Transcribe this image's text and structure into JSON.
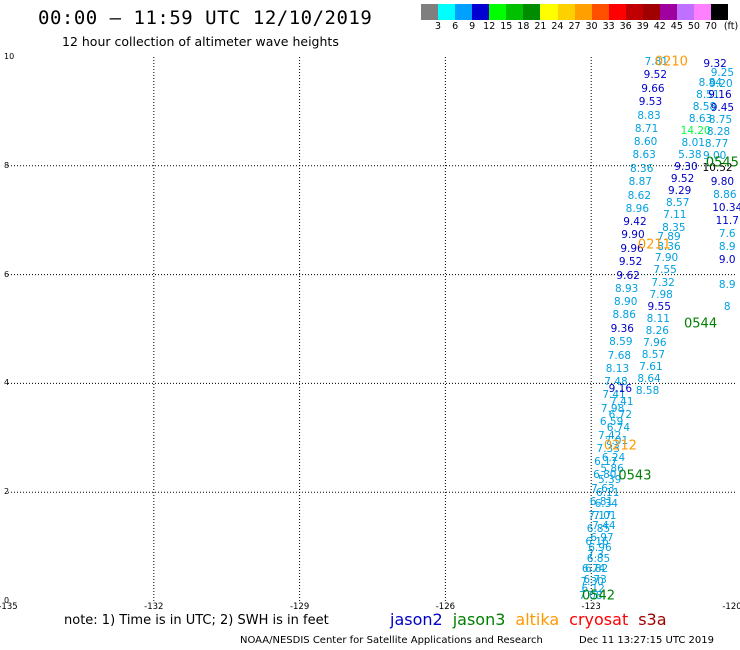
{
  "title": "00:00 – 11:59 UTC 12/10/2019",
  "subtitle": "12 hour collection of altimeter wave heights",
  "legend": {
    "unit": "(ft)",
    "bins": [
      {
        "label": "3",
        "color": "#7f7f7f"
      },
      {
        "label": "6",
        "color": "#00ffff"
      },
      {
        "label": "9",
        "color": "#00a0ff"
      },
      {
        "label": "12",
        "color": "#0000d0"
      },
      {
        "label": "15",
        "color": "#00ff00"
      },
      {
        "label": "18",
        "color": "#00c000"
      },
      {
        "label": "21",
        "color": "#008c00"
      },
      {
        "label": "24",
        "color": "#ffff00"
      },
      {
        "label": "27",
        "color": "#ffd000"
      },
      {
        "label": "30",
        "color": "#ffa000"
      },
      {
        "label": "33",
        "color": "#ff5000"
      },
      {
        "label": "36",
        "color": "#ff0000"
      },
      {
        "label": "39",
        "color": "#c00000"
      },
      {
        "label": "42",
        "color": "#a00000"
      },
      {
        "label": "45",
        "color": "#a000a0"
      },
      {
        "label": "50",
        "color": "#c070ff"
      },
      {
        "label": "70",
        "color": "#ff80ff"
      },
      {
        "label": "",
        "color": "#000000"
      }
    ]
  },
  "map": {
    "lat_ticks": [
      "10",
      "8",
      "6",
      "4",
      "2",
      "0"
    ],
    "lon_ticks": [
      "-135",
      "-132",
      "-129",
      "-126",
      "-123",
      "-120"
    ],
    "lat_range": [
      0,
      10
    ],
    "lon_range": [
      -135,
      -120
    ],
    "colors": {
      "jason2": "#0000c8",
      "cyan": "#00a0e0",
      "jason3": "#008000",
      "altika": "#ff9900",
      "cryosat": "#ff0000",
      "s3a": "#a00000",
      "green": "#00ff40",
      "black": "#000000"
    },
    "track_labels": [
      {
        "text": "0210",
        "lon": -121.35,
        "lat": 9.9,
        "color": "altika"
      },
      {
        "text": "0211",
        "lon": -121.7,
        "lat": 6.55,
        "color": "altika"
      },
      {
        "text": "0212",
        "lon": -122.4,
        "lat": 2.85,
        "color": "altika"
      },
      {
        "text": "0542",
        "lon": -122.85,
        "lat": 0.1,
        "color": "jason3"
      },
      {
        "text": "0543",
        "lon": -122.1,
        "lat": 2.3,
        "color": "jason3"
      },
      {
        "text": "0544",
        "lon": -120.75,
        "lat": 5.1,
        "color": "jason3"
      },
      {
        "text": "0545",
        "lon": -120.3,
        "lat": 8.05,
        "color": "jason3"
      }
    ],
    "observations": [
      {
        "v": "7.81",
        "lon": -121.66,
        "lat": 9.9,
        "c": "cyan"
      },
      {
        "v": "9.52",
        "lon": -121.68,
        "lat": 9.66,
        "c": "jason2"
      },
      {
        "v": "9.66",
        "lon": -121.73,
        "lat": 9.41,
        "c": "jason2"
      },
      {
        "v": "9.53",
        "lon": -121.78,
        "lat": 9.17,
        "c": "jason2"
      },
      {
        "v": "8.83",
        "lon": -121.81,
        "lat": 8.92,
        "c": "cyan"
      },
      {
        "v": "8.71",
        "lon": -121.86,
        "lat": 8.68,
        "c": "cyan"
      },
      {
        "v": "8.60",
        "lon": -121.88,
        "lat": 8.43,
        "c": "cyan"
      },
      {
        "v": "8.63",
        "lon": -121.91,
        "lat": 8.19,
        "c": "cyan"
      },
      {
        "v": "8.36",
        "lon": -121.96,
        "lat": 7.94,
        "c": "cyan"
      },
      {
        "v": "8.87",
        "lon": -121.99,
        "lat": 7.7,
        "c": "cyan"
      },
      {
        "v": "8.62",
        "lon": -122.01,
        "lat": 7.45,
        "c": "cyan"
      },
      {
        "v": "8.96",
        "lon": -122.05,
        "lat": 7.21,
        "c": "cyan"
      },
      {
        "v": "9.42",
        "lon": -122.1,
        "lat": 6.96,
        "c": "jason2"
      },
      {
        "v": "9.90",
        "lon": -122.14,
        "lat": 6.72,
        "c": "jason2"
      },
      {
        "v": "9.96",
        "lon": -122.16,
        "lat": 6.47,
        "c": "jason2"
      },
      {
        "v": "9.52",
        "lon": -122.19,
        "lat": 6.23,
        "c": "jason2"
      },
      {
        "v": "9.62",
        "lon": -122.24,
        "lat": 5.98,
        "c": "jason2"
      },
      {
        "v": "8.93",
        "lon": -122.27,
        "lat": 5.74,
        "c": "cyan"
      },
      {
        "v": "8.90",
        "lon": -122.29,
        "lat": 5.49,
        "c": "cyan"
      },
      {
        "v": "8.86",
        "lon": -122.32,
        "lat": 5.25,
        "c": "cyan"
      },
      {
        "v": "9.36",
        "lon": -122.36,
        "lat": 5.0,
        "c": "jason2"
      },
      {
        "v": "8.59",
        "lon": -122.39,
        "lat": 4.76,
        "c": "cyan"
      },
      {
        "v": "7.68",
        "lon": -122.42,
        "lat": 4.51,
        "c": "cyan"
      },
      {
        "v": "8.13",
        "lon": -122.46,
        "lat": 4.27,
        "c": "cyan"
      },
      {
        "v": "7.48",
        "lon": -122.49,
        "lat": 4.02,
        "c": "cyan"
      },
      {
        "v": "7.41",
        "lon": -122.53,
        "lat": 3.78,
        "c": "cyan"
      },
      {
        "v": "7.98",
        "lon": -122.56,
        "lat": 3.53,
        "c": "cyan"
      },
      {
        "v": "6.59",
        "lon": -122.58,
        "lat": 3.29,
        "c": "cyan"
      },
      {
        "v": "7.42",
        "lon": -122.62,
        "lat": 3.04,
        "c": "cyan"
      },
      {
        "v": "7.33",
        "lon": -122.65,
        "lat": 2.8,
        "c": "cyan"
      },
      {
        "v": "6.17",
        "lon": -122.7,
        "lat": 2.55,
        "c": "cyan"
      },
      {
        "v": "6.80",
        "lon": -122.72,
        "lat": 2.31,
        "c": "cyan"
      },
      {
        "v": "7.63",
        "lon": -122.76,
        "lat": 2.06,
        "c": "cyan"
      },
      {
        "v": "6.81",
        "lon": -122.79,
        "lat": 1.82,
        "c": "cyan"
      },
      {
        "v": "7.17",
        "lon": -122.82,
        "lat": 1.57,
        "c": "cyan"
      },
      {
        "v": "6.85",
        "lon": -122.85,
        "lat": 1.33,
        "c": "cyan"
      },
      {
        "v": "6.16",
        "lon": -122.88,
        "lat": 1.08,
        "c": "cyan"
      },
      {
        "v": "7.3",
        "lon": -122.91,
        "lat": 0.84,
        "c": "cyan"
      },
      {
        "v": "6.74",
        "lon": -122.95,
        "lat": 0.59,
        "c": "cyan"
      },
      {
        "v": "7.30",
        "lon": -122.98,
        "lat": 0.35,
        "c": "cyan"
      },
      {
        "v": "7.08",
        "lon": -123.01,
        "lat": 0.1,
        "c": "cyan"
      },
      {
        "v": "9.16",
        "lon": -122.4,
        "lat": 3.9,
        "c": "jason2"
      },
      {
        "v": "7.41",
        "lon": -122.37,
        "lat": 3.66,
        "c": "cyan"
      },
      {
        "v": "6.72",
        "lon": -122.4,
        "lat": 3.42,
        "c": "cyan"
      },
      {
        "v": "6.74",
        "lon": -122.44,
        "lat": 3.18,
        "c": "cyan"
      },
      {
        "v": "7.01",
        "lon": -122.48,
        "lat": 2.95,
        "c": "cyan"
      },
      {
        "v": "6.24",
        "lon": -122.54,
        "lat": 2.62,
        "c": "cyan"
      },
      {
        "v": "5.86",
        "lon": -122.57,
        "lat": 2.42,
        "c": "cyan"
      },
      {
        "v": "5.39",
        "lon": -122.62,
        "lat": 2.22,
        "c": "cyan"
      },
      {
        "v": "6.11",
        "lon": -122.66,
        "lat": 1.98,
        "c": "cyan"
      },
      {
        "v": "6.34",
        "lon": -122.69,
        "lat": 1.78,
        "c": "cyan"
      },
      {
        "v": "7.01",
        "lon": -122.72,
        "lat": 1.57,
        "c": "cyan"
      },
      {
        "v": "7.44",
        "lon": -122.74,
        "lat": 1.38,
        "c": "cyan"
      },
      {
        "v": "6.97",
        "lon": -122.78,
        "lat": 1.15,
        "c": "cyan"
      },
      {
        "v": "6.96",
        "lon": -122.82,
        "lat": 0.98,
        "c": "cyan"
      },
      {
        "v": "6.85",
        "lon": -122.85,
        "lat": 0.78,
        "c": "cyan"
      },
      {
        "v": "6.82",
        "lon": -122.89,
        "lat": 0.58,
        "c": "cyan"
      },
      {
        "v": "6.73",
        "lon": -122.92,
        "lat": 0.38,
        "c": "cyan"
      },
      {
        "v": "6.12",
        "lon": -122.96,
        "lat": 0.22,
        "c": "cyan"
      },
      {
        "v": "8.36",
        "lon": -121.4,
        "lat": 6.5,
        "c": "cyan"
      },
      {
        "v": "7.89",
        "lon": -121.4,
        "lat": 6.7,
        "c": "cyan"
      },
      {
        "v": "7.90",
        "lon": -121.45,
        "lat": 6.3,
        "c": "cyan"
      },
      {
        "v": "7.55",
        "lon": -121.48,
        "lat": 6.08,
        "c": "cyan"
      },
      {
        "v": "7.32",
        "lon": -121.52,
        "lat": 5.84,
        "c": "cyan"
      },
      {
        "v": "7.98",
        "lon": -121.56,
        "lat": 5.62,
        "c": "cyan"
      },
      {
        "v": "9.55",
        "lon": -121.6,
        "lat": 5.4,
        "c": "jason2"
      },
      {
        "v": "8.11",
        "lon": -121.62,
        "lat": 5.18,
        "c": "cyan"
      },
      {
        "v": "8.26",
        "lon": -121.64,
        "lat": 4.97,
        "c": "cyan"
      },
      {
        "v": "7.96",
        "lon": -121.69,
        "lat": 4.74,
        "c": "cyan"
      },
      {
        "v": "8.57",
        "lon": -121.72,
        "lat": 4.52,
        "c": "cyan"
      },
      {
        "v": "7.61",
        "lon": -121.77,
        "lat": 4.3,
        "c": "cyan"
      },
      {
        "v": "8.64",
        "lon": -121.81,
        "lat": 4.08,
        "c": "cyan"
      },
      {
        "v": "8.58",
        "lon": -121.84,
        "lat": 3.86,
        "c": "cyan"
      },
      {
        "v": "7.11",
        "lon": -121.28,
        "lat": 7.09,
        "c": "cyan"
      },
      {
        "v": "8.35",
        "lon": -121.3,
        "lat": 6.86,
        "c": "cyan"
      },
      {
        "v": "8.57",
        "lon": -121.22,
        "lat": 7.31,
        "c": "cyan"
      },
      {
        "v": "9.29",
        "lon": -121.18,
        "lat": 7.53,
        "c": "jason2"
      },
      {
        "v": "9.52",
        "lon": -121.12,
        "lat": 7.75,
        "c": "jason2"
      },
      {
        "v": "9.30",
        "lon": -121.05,
        "lat": 7.97,
        "c": "jason2"
      },
      {
        "v": "5.38",
        "lon": -120.97,
        "lat": 8.2,
        "c": "cyan"
      },
      {
        "v": "8.01",
        "lon": -120.9,
        "lat": 8.42,
        "c": "cyan"
      },
      {
        "v": "14.20",
        "lon": -120.85,
        "lat": 8.64,
        "c": "green"
      },
      {
        "v": "8.63",
        "lon": -120.75,
        "lat": 8.86,
        "c": "cyan"
      },
      {
        "v": "8.58",
        "lon": -120.67,
        "lat": 9.08,
        "c": "cyan"
      },
      {
        "v": "8.51",
        "lon": -120.6,
        "lat": 9.3,
        "c": "cyan"
      },
      {
        "v": "8.84",
        "lon": -120.55,
        "lat": 9.52,
        "c": "cyan"
      },
      {
        "v": "9.32",
        "lon": -120.45,
        "lat": 9.88,
        "c": "jason2"
      },
      {
        "v": "9.25",
        "lon": -120.3,
        "lat": 9.7,
        "c": "cyan"
      },
      {
        "v": "9.20",
        "lon": -120.33,
        "lat": 9.5,
        "c": "cyan"
      },
      {
        "v": "9.16",
        "lon": -120.35,
        "lat": 9.3,
        "c": "jason2"
      },
      {
        "v": "9.45",
        "lon": -120.3,
        "lat": 9.06,
        "c": "jason2"
      },
      {
        "v": "8.75",
        "lon": -120.34,
        "lat": 8.84,
        "c": "cyan"
      },
      {
        "v": "8.28",
        "lon": -120.38,
        "lat": 8.62,
        "c": "cyan"
      },
      {
        "v": "8.77",
        "lon": -120.42,
        "lat": 8.4,
        "c": "cyan"
      },
      {
        "v": "9.00",
        "lon": -120.46,
        "lat": 8.18,
        "c": "cyan"
      },
      {
        "v": "10.52",
        "lon": -120.4,
        "lat": 7.96,
        "c": "black"
      },
      {
        "v": "9.80",
        "lon": -120.3,
        "lat": 7.7,
        "c": "jason2"
      },
      {
        "v": "8.86",
        "lon": -120.25,
        "lat": 7.46,
        "c": "cyan"
      },
      {
        "v": "10.34",
        "lon": -120.2,
        "lat": 7.22,
        "c": "jason2"
      },
      {
        "v": "11.7",
        "lon": -120.2,
        "lat": 6.98,
        "c": "jason2"
      },
      {
        "v": "7.6",
        "lon": -120.2,
        "lat": 6.74,
        "c": "cyan"
      },
      {
        "v": "8.9",
        "lon": -120.2,
        "lat": 6.5,
        "c": "cyan"
      },
      {
        "v": "9.0",
        "lon": -120.2,
        "lat": 6.26,
        "c": "jason2"
      },
      {
        "v": "8.9",
        "lon": -120.2,
        "lat": 5.8,
        "c": "cyan"
      },
      {
        "v": "8",
        "lon": -120.2,
        "lat": 5.4,
        "c": "cyan"
      }
    ]
  },
  "note": "note:  1) Time is in UTC;  2) SWH is in feet",
  "satellites": [
    {
      "name": "jason2",
      "color": "#0000c8"
    },
    {
      "name": "jason3",
      "color": "#008000"
    },
    {
      "name": "altika",
      "color": "#ff9900"
    },
    {
      "name": "cryosat",
      "color": "#ff0000"
    },
    {
      "name": "s3a",
      "color": "#a00000"
    }
  ],
  "credit": "NOAA/NESDIS Center for Satellite Applications and Research",
  "timestamp": "Dec 11 13:27:15 UTC 2019"
}
